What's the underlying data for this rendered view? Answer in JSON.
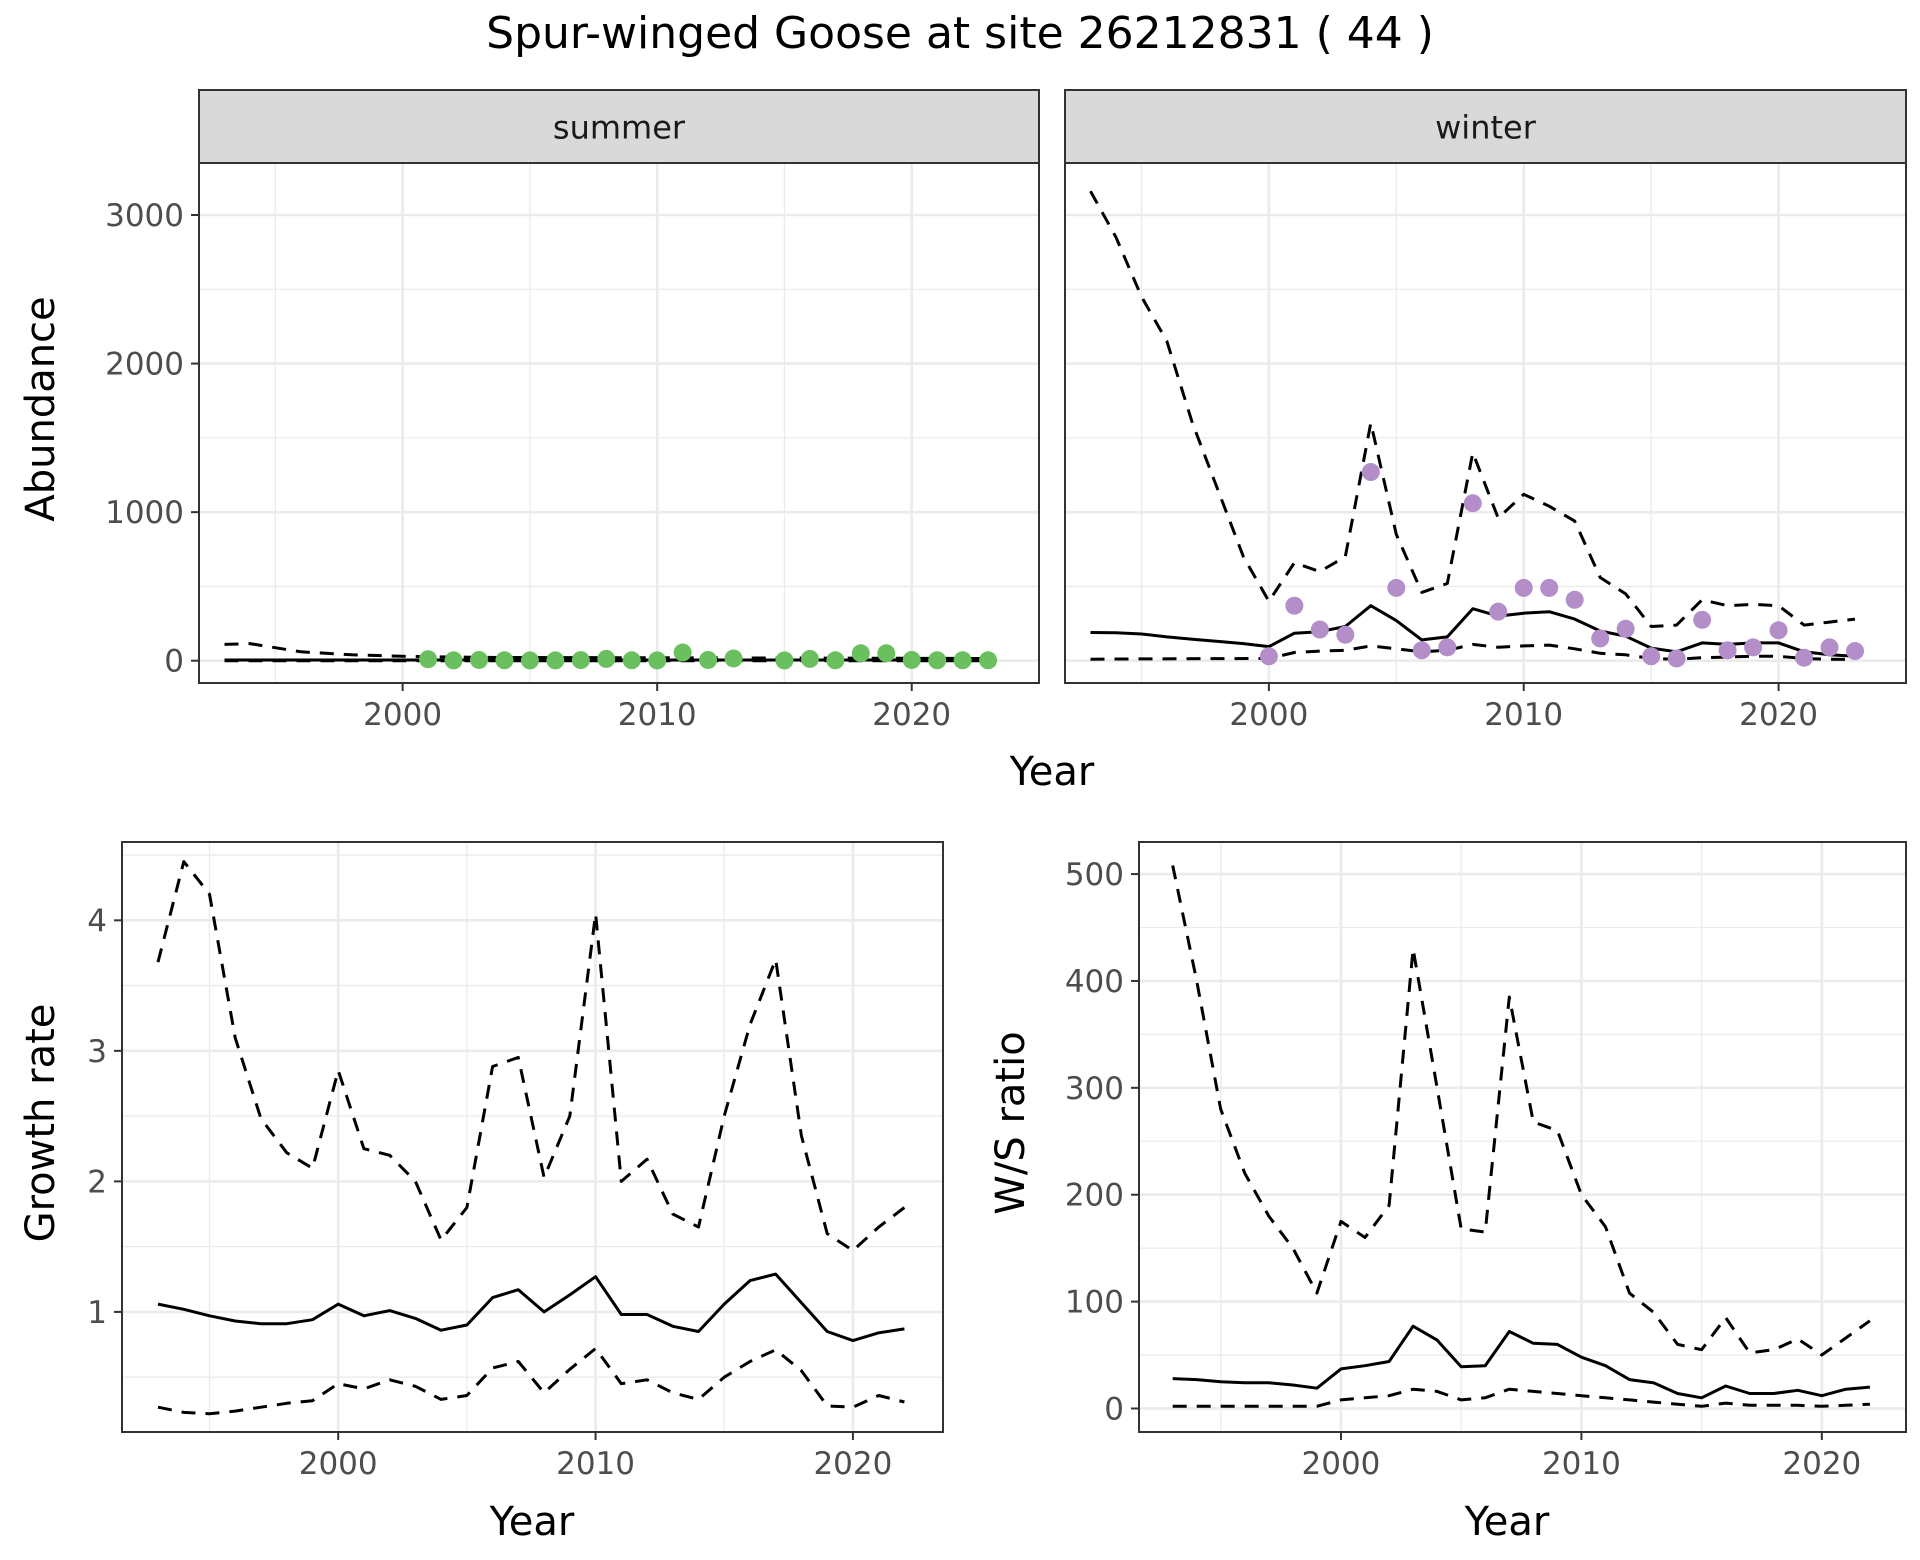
{
  "title": "Spur-winged Goose at site 26212831 ( 44 )",
  "colors": {
    "summer_points": "#6abf5e",
    "winter_points": "#b48ec9",
    "strip_fill": "#d9d9d9",
    "grid": "#ebebeb",
    "line": "#000000"
  },
  "chart_data": [
    {
      "type": "line",
      "panel": "summer",
      "strip_label": "summer",
      "xlabel": "Year",
      "ylabel": "Abundance",
      "xlim": [
        1992,
        2025
      ],
      "ylim": [
        -150,
        3350
      ],
      "xticks": [
        2000,
        2010,
        2020
      ],
      "yticks": [
        0,
        1000,
        2000,
        3000
      ],
      "show_yticks": true,
      "grid": true,
      "series": [
        {
          "role": "estimate",
          "style": "solid",
          "x": [
            1993,
            1995,
            2000,
            2005,
            2010,
            2015,
            2020,
            2023
          ],
          "y": [
            5,
            5,
            5,
            5,
            5,
            5,
            5,
            5
          ]
        },
        {
          "role": "upper",
          "style": "dashed",
          "x": [
            1993,
            1994,
            1996,
            1998,
            2000,
            2003,
            2008,
            2015,
            2020,
            2023
          ],
          "y": [
            110,
            115,
            60,
            40,
            30,
            22,
            20,
            18,
            16,
            15
          ]
        },
        {
          "role": "lower",
          "style": "dashed",
          "x": [
            1993,
            2000,
            2010,
            2023
          ],
          "y": [
            0,
            0,
            0,
            0
          ]
        }
      ],
      "points": {
        "x": [
          2001,
          2002,
          2003,
          2004,
          2005,
          2006,
          2007,
          2008,
          2009,
          2010,
          2011,
          2012,
          2013,
          2015,
          2016,
          2017,
          2018,
          2019,
          2020,
          2021,
          2022,
          2023
        ],
        "y": [
          10,
          2,
          5,
          3,
          2,
          2,
          4,
          12,
          3,
          2,
          55,
          5,
          15,
          2,
          12,
          3,
          50,
          50,
          5,
          3,
          3,
          3
        ]
      }
    },
    {
      "type": "line",
      "panel": "winter",
      "strip_label": "winter",
      "xlabel": "Year",
      "ylabel": "Abundance",
      "xlim": [
        1992,
        2025
      ],
      "ylim": [
        -150,
        3350
      ],
      "xticks": [
        2000,
        2010,
        2020
      ],
      "yticks": [
        0,
        1000,
        2000,
        3000
      ],
      "show_yticks": false,
      "grid": true,
      "series": [
        {
          "role": "estimate",
          "style": "solid",
          "x": [
            1993,
            1994,
            1995,
            1996,
            1997,
            1998,
            1999,
            2000,
            2001,
            2002,
            2003,
            2004,
            2005,
            2006,
            2007,
            2008,
            2009,
            2010,
            2011,
            2012,
            2013,
            2014,
            2015,
            2016,
            2017,
            2018,
            2019,
            2020,
            2021,
            2022,
            2023
          ],
          "y": [
            190,
            188,
            180,
            160,
            145,
            130,
            115,
            95,
            185,
            195,
            230,
            370,
            270,
            140,
            160,
            350,
            300,
            320,
            330,
            280,
            200,
            165,
            85,
            60,
            120,
            110,
            120,
            120,
            60,
            40,
            30
          ]
        },
        {
          "role": "upper",
          "style": "dashed",
          "x": [
            1993,
            1994,
            1995,
            1996,
            1997,
            1998,
            1999,
            2000,
            2001,
            2002,
            2003,
            2004,
            2005,
            2006,
            2007,
            2008,
            2009,
            2010,
            2011,
            2012,
            2013,
            2014,
            2015,
            2016,
            2017,
            2018,
            2019,
            2020,
            2021,
            2022,
            2023
          ],
          "y": [
            3160,
            2850,
            2450,
            2150,
            1600,
            1150,
            700,
            400,
            660,
            600,
            700,
            1600,
            850,
            460,
            520,
            1400,
            960,
            1120,
            1040,
            940,
            560,
            450,
            230,
            240,
            410,
            370,
            380,
            370,
            240,
            260,
            280
          ]
        },
        {
          "role": "lower",
          "style": "dashed",
          "x": [
            1993,
            1995,
            1998,
            2000,
            2001,
            2002,
            2003,
            2004,
            2005,
            2006,
            2007,
            2008,
            2009,
            2010,
            2011,
            2012,
            2013,
            2014,
            2015,
            2016,
            2017,
            2018,
            2019,
            2020,
            2021,
            2022,
            2023
          ],
          "y": [
            10,
            12,
            14,
            15,
            55,
            65,
            70,
            100,
            80,
            60,
            70,
            110,
            90,
            100,
            105,
            80,
            50,
            40,
            15,
            10,
            20,
            25,
            30,
            30,
            15,
            10,
            8
          ]
        }
      ],
      "points": {
        "x": [
          2000,
          2001,
          2002,
          2003,
          2004,
          2005,
          2006,
          2007,
          2008,
          2009,
          2010,
          2011,
          2012,
          2013,
          2014,
          2015,
          2016,
          2017,
          2018,
          2019,
          2020,
          2021,
          2022,
          2023
        ],
        "y": [
          30,
          370,
          210,
          175,
          1270,
          490,
          70,
          90,
          1060,
          330,
          490,
          490,
          410,
          150,
          215,
          30,
          15,
          275,
          70,
          90,
          205,
          20,
          90,
          65
        ]
      }
    },
    {
      "type": "line",
      "panel": "growth",
      "xlabel": "Year",
      "ylabel": "Growth rate",
      "xlim": [
        1991.6,
        2023.5
      ],
      "ylim": [
        0.08,
        4.6
      ],
      "xticks": [
        2000,
        2010,
        2020
      ],
      "yticks": [
        1,
        2,
        3,
        4
      ],
      "show_yticks": true,
      "grid": true,
      "series": [
        {
          "role": "estimate",
          "style": "solid",
          "x": [
            1993,
            1994,
            1995,
            1996,
            1997,
            1998,
            1999,
            2000,
            2001,
            2002,
            2003,
            2004,
            2005,
            2006,
            2007,
            2008,
            2009,
            2010,
            2011,
            2012,
            2013,
            2014,
            2015,
            2016,
            2017,
            2018,
            2019,
            2020,
            2021,
            2022
          ],
          "y": [
            1.06,
            1.02,
            0.97,
            0.93,
            0.91,
            0.91,
            0.94,
            1.06,
            0.97,
            1.01,
            0.95,
            0.86,
            0.9,
            1.11,
            1.17,
            1.0,
            1.13,
            1.27,
            0.98,
            0.98,
            0.89,
            0.85,
            1.06,
            1.24,
            1.29,
            1.07,
            0.85,
            0.78,
            0.84,
            0.87
          ]
        },
        {
          "role": "upper",
          "style": "dashed",
          "x": [
            1993,
            1994,
            1995,
            1996,
            1997,
            1998,
            1999,
            2000,
            2001,
            2002,
            2003,
            2004,
            2005,
            2006,
            2007,
            2008,
            2009,
            2010,
            2011,
            2012,
            2013,
            2014,
            2015,
            2016,
            2017,
            2018,
            2019,
            2020,
            2021,
            2022
          ],
          "y": [
            3.68,
            4.45,
            4.2,
            3.1,
            2.48,
            2.22,
            2.1,
            2.85,
            2.25,
            2.2,
            2.0,
            1.55,
            1.8,
            2.88,
            2.95,
            2.03,
            2.5,
            4.05,
            2.0,
            2.17,
            1.75,
            1.65,
            2.5,
            3.2,
            3.7,
            2.35,
            1.6,
            1.47,
            1.65,
            1.8
          ]
        },
        {
          "role": "lower",
          "style": "dashed",
          "x": [
            1993,
            1994,
            1995,
            1996,
            1997,
            1998,
            1999,
            2000,
            2001,
            2002,
            2003,
            2004,
            2005,
            2006,
            2007,
            2008,
            2009,
            2010,
            2011,
            2012,
            2013,
            2014,
            2015,
            2016,
            2017,
            2018,
            2019,
            2020,
            2021,
            2022
          ],
          "y": [
            0.27,
            0.23,
            0.22,
            0.24,
            0.27,
            0.3,
            0.32,
            0.45,
            0.41,
            0.48,
            0.43,
            0.33,
            0.36,
            0.57,
            0.62,
            0.38,
            0.56,
            0.72,
            0.45,
            0.48,
            0.38,
            0.33,
            0.5,
            0.62,
            0.71,
            0.55,
            0.28,
            0.27,
            0.36,
            0.31
          ]
        }
      ]
    },
    {
      "type": "line",
      "panel": "ratio",
      "xlabel": "Year",
      "ylabel": "W/S ratio",
      "xlim": [
        1991.6,
        2023.5
      ],
      "ylim": [
        -22,
        530
      ],
      "xticks": [
        2000,
        2010,
        2020
      ],
      "yticks": [
        0,
        100,
        200,
        300,
        400,
        500
      ],
      "show_yticks": true,
      "grid": true,
      "series": [
        {
          "role": "estimate",
          "style": "solid",
          "x": [
            1993,
            1994,
            1995,
            1996,
            1997,
            1998,
            1999,
            2000,
            2001,
            2002,
            2003,
            2004,
            2005,
            2006,
            2007,
            2008,
            2009,
            2010,
            2011,
            2012,
            2013,
            2014,
            2015,
            2016,
            2017,
            2018,
            2019,
            2020,
            2021,
            2022
          ],
          "y": [
            28,
            27,
            25,
            24,
            24,
            22,
            19,
            37,
            40,
            44,
            77,
            64,
            39,
            40,
            72,
            61,
            60,
            48,
            40,
            27,
            24,
            14,
            10,
            21,
            14,
            14,
            17,
            12,
            18,
            20
          ]
        },
        {
          "role": "upper",
          "style": "dashed",
          "x": [
            1993,
            1994,
            1995,
            1996,
            1997,
            1998,
            1999,
            2000,
            2001,
            2002,
            2003,
            2004,
            2005,
            2006,
            2007,
            2008,
            2009,
            2010,
            2011,
            2012,
            2013,
            2014,
            2015,
            2016,
            2017,
            2018,
            2019,
            2020,
            2021,
            2022
          ],
          "y": [
            508,
            400,
            280,
            220,
            180,
            150,
            108,
            175,
            160,
            190,
            430,
            300,
            168,
            165,
            385,
            268,
            260,
            200,
            170,
            108,
            90,
            60,
            55,
            85,
            52,
            55,
            65,
            50,
            66,
            82
          ]
        },
        {
          "role": "lower",
          "style": "dashed",
          "x": [
            1993,
            1994,
            1995,
            1996,
            1997,
            1998,
            1999,
            2000,
            2001,
            2002,
            2003,
            2004,
            2005,
            2006,
            2007,
            2008,
            2009,
            2010,
            2011,
            2012,
            2013,
            2014,
            2015,
            2016,
            2017,
            2018,
            2019,
            2020,
            2021,
            2022
          ],
          "y": [
            2,
            2,
            2,
            2,
            2,
            2,
            2,
            8,
            10,
            12,
            18,
            16,
            8,
            10,
            18,
            16,
            14,
            12,
            10,
            8,
            6,
            4,
            2,
            5,
            3,
            3,
            3,
            2,
            3,
            4
          ]
        }
      ]
    }
  ]
}
